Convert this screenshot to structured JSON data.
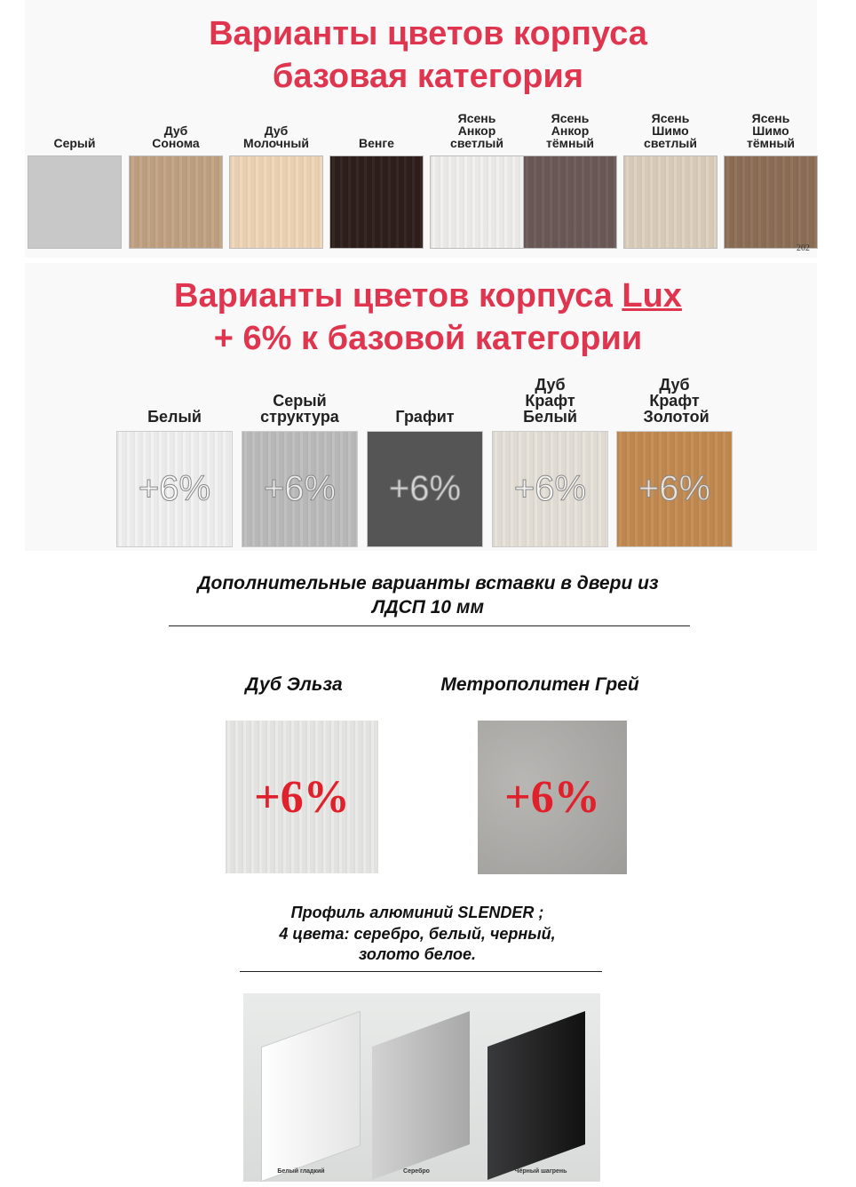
{
  "base": {
    "title_line1": "Варианты цветов корпуса",
    "title_line2": "базовая категория",
    "swatches": [
      {
        "label": "Серый",
        "color": "#c8c8c8"
      },
      {
        "label": "Дуб Сонома",
        "color": "#c2a283"
      },
      {
        "label": "Дуб Молочный",
        "color": "#f0d6b8"
      },
      {
        "label": "Венге",
        "color": "#2e1f1c"
      },
      {
        "label": "Ясень Анкор светлый",
        "color": "#f1f0ee"
      },
      {
        "label": "Ясень Анкор тёмный",
        "color": "#6b5a58"
      },
      {
        "label": "Ясень Шимо светлый",
        "color": "#ddd0bd"
      },
      {
        "label": "Ясень Шимо тёмный",
        "color": "#8d6f56"
      }
    ],
    "corner_text": "202"
  },
  "lux": {
    "title_line1": "Варианты цветов корпуса ",
    "title_lux": "Lux",
    "title_line2": "+ 6% к базовой категории",
    "swatches": [
      {
        "label": "Белый",
        "color": "#f2f2f2",
        "badge": "+6%"
      },
      {
        "label": "Серый структура",
        "color": "#bdbdbd",
        "badge": "+6%"
      },
      {
        "label": "Графит",
        "color": "#555555",
        "badge": "+6%"
      },
      {
        "label": "Дуб Крафт Белый",
        "color": "#e6e2da",
        "badge": "+6%"
      },
      {
        "label": "Дуб Крафт Золотой",
        "color": "#c48b52",
        "badge": "+6%"
      }
    ]
  },
  "inserts": {
    "heading_line1": "Дополнительные варианты вставки в двери из",
    "heading_line2": "ЛДСП 10 мм",
    "items": [
      {
        "label": "Дуб Эльза",
        "badge": "+6%",
        "color": "#e8e8e6"
      },
      {
        "label": "Метрополитен Грей",
        "badge": "+6%",
        "color": "#a9a8a5"
      }
    ]
  },
  "profile": {
    "line1": "Профиль алюминий SLENDER ;",
    "line2": "4 цвета: серебро, белый, черный,",
    "line3": "золото белое.",
    "captions": [
      "Белый гладкий",
      "Серебро",
      "Чёрный шагрень"
    ]
  }
}
